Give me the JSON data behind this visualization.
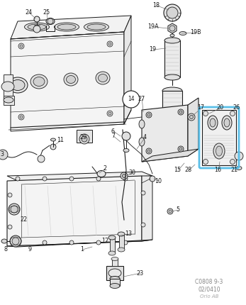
{
  "bg_color": "#ffffff",
  "line_color": "#1a1a1a",
  "highlight_color": "#5bbfe8",
  "text_color": "#1a1a1a",
  "footer_lines": [
    "C0808 9-3",
    "02/0410",
    "Orio AB"
  ],
  "fig_width": 3.47,
  "fig_height": 4.3,
  "dpi": 100
}
